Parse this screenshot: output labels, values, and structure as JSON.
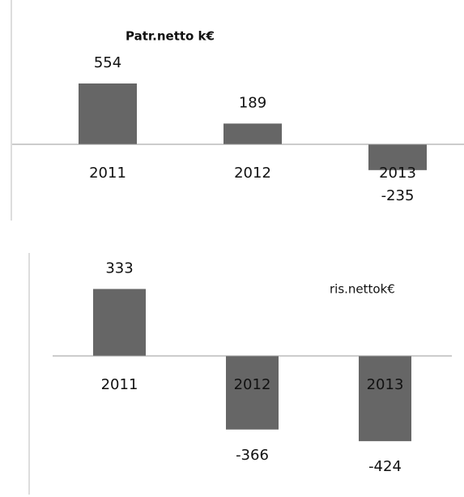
{
  "chart_data": [
    {
      "type": "bar",
      "title": "Patr.netto k€",
      "categories": [
        "2011",
        "2012",
        "2013"
      ],
      "values": [
        554,
        189,
        -235
      ],
      "color": "#666666",
      "ylim": [
        -700,
        1100
      ]
    },
    {
      "type": "bar",
      "title": "ris.nettok€",
      "categories": [
        "2011",
        "2012",
        "2013"
      ],
      "values": [
        333,
        -366,
        -424
      ],
      "color": "#666666",
      "ylim": [
        -700,
        500
      ]
    }
  ]
}
